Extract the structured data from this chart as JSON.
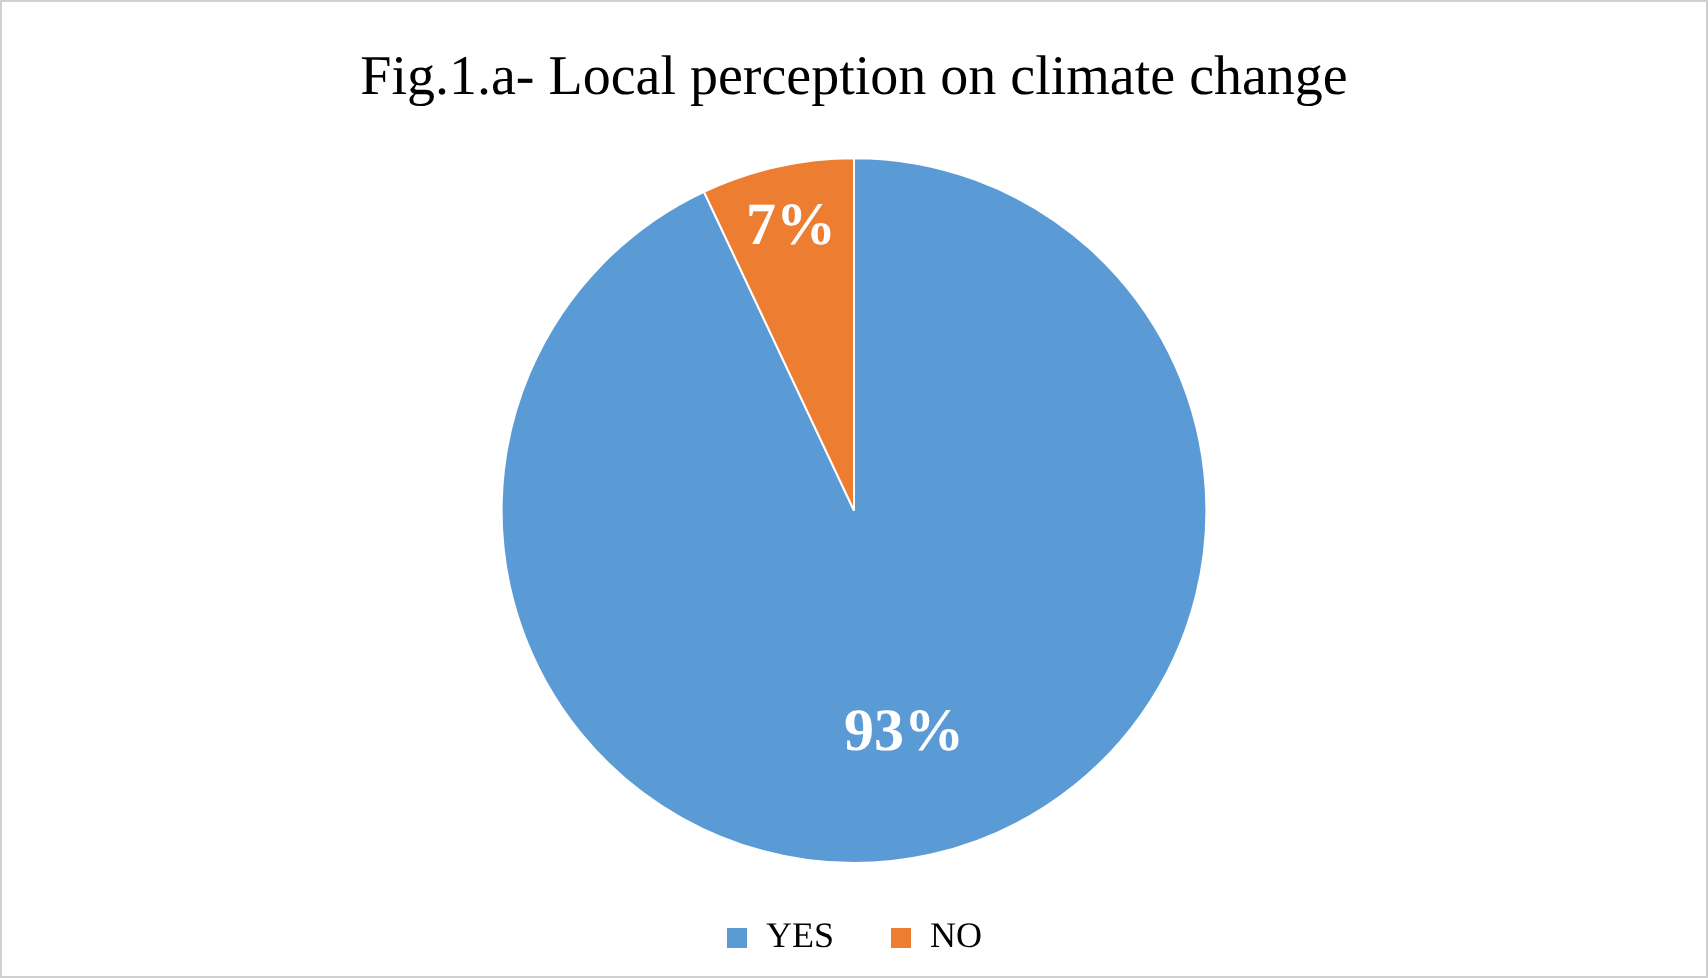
{
  "chart_data": {
    "type": "pie",
    "title": "Fig.1.a- Local perception on climate change",
    "categories": [
      "YES",
      "NO"
    ],
    "values": [
      93,
      7
    ],
    "colors": [
      "#5b9bd5",
      "#ed7d31"
    ],
    "value_labels": [
      "93%",
      "7%"
    ],
    "legend": "bottom"
  }
}
